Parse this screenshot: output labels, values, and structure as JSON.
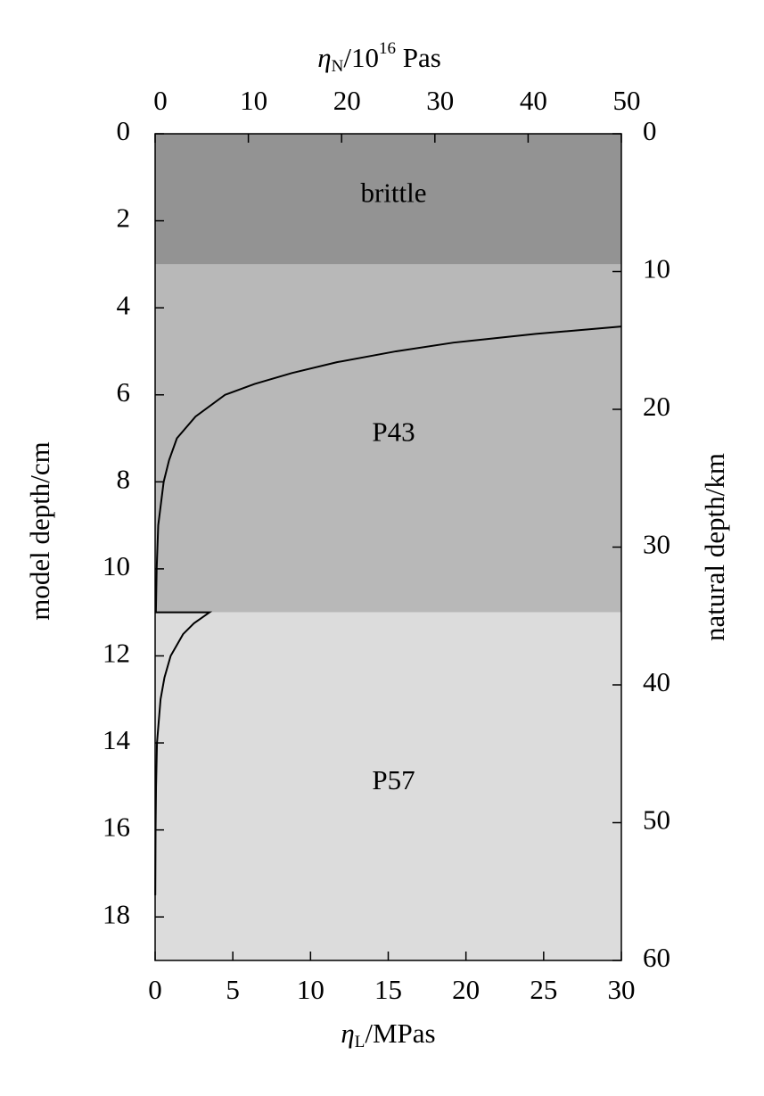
{
  "chart_data": {
    "type": "line",
    "orientation": "horizontal",
    "xlabel": [
      "η",
      "L",
      "/MPas"
    ],
    "x2label": [
      "η",
      "N",
      "/10",
      "16",
      " Pas"
    ],
    "ylabel": "model depth/cm",
    "y2label": "natural depth/km",
    "xlim": [
      0,
      30
    ],
    "xticks": [
      0,
      5,
      10,
      15,
      20,
      25,
      30
    ],
    "x2lim": [
      0,
      50
    ],
    "x2ticks": [
      0,
      10,
      20,
      30,
      40,
      50
    ],
    "ylim": [
      0,
      19
    ],
    "yticks": [
      0,
      2,
      4,
      6,
      8,
      10,
      12,
      14,
      16,
      18
    ],
    "y2lim": [
      0,
      60
    ],
    "y2ticks": [
      0,
      10,
      20,
      30,
      40,
      50,
      60
    ],
    "inverted_y": true,
    "regions": [
      {
        "label": "brittle",
        "from": 0,
        "to": 3,
        "color": "#939393"
      },
      {
        "label": "P43",
        "from": 3,
        "to": 11,
        "color": "#b8b8b8"
      },
      {
        "label": "P57",
        "from": 11,
        "to": 19,
        "color": "#dcdcdc"
      }
    ],
    "series": [
      {
        "color": "#000000",
        "x": [
          4.43,
          4.6,
          4.8,
          5,
          5.25,
          5.5,
          5.75,
          6,
          6.5,
          7,
          7.5,
          8,
          9,
          10,
          11,
          11,
          11.25,
          11.5,
          12,
          12.5,
          13,
          14,
          15,
          16,
          17.5
        ],
        "values": [
          30,
          24.5,
          19.2,
          15.5,
          11.7,
          8.8,
          6.4,
          4.5,
          2.6,
          1.4,
          0.9,
          0.55,
          0.2,
          0.1,
          0.05,
          3.5,
          2.5,
          1.8,
          1.0,
          0.6,
          0.35,
          0.12,
          0.06,
          0.03,
          0.01
        ]
      }
    ]
  }
}
